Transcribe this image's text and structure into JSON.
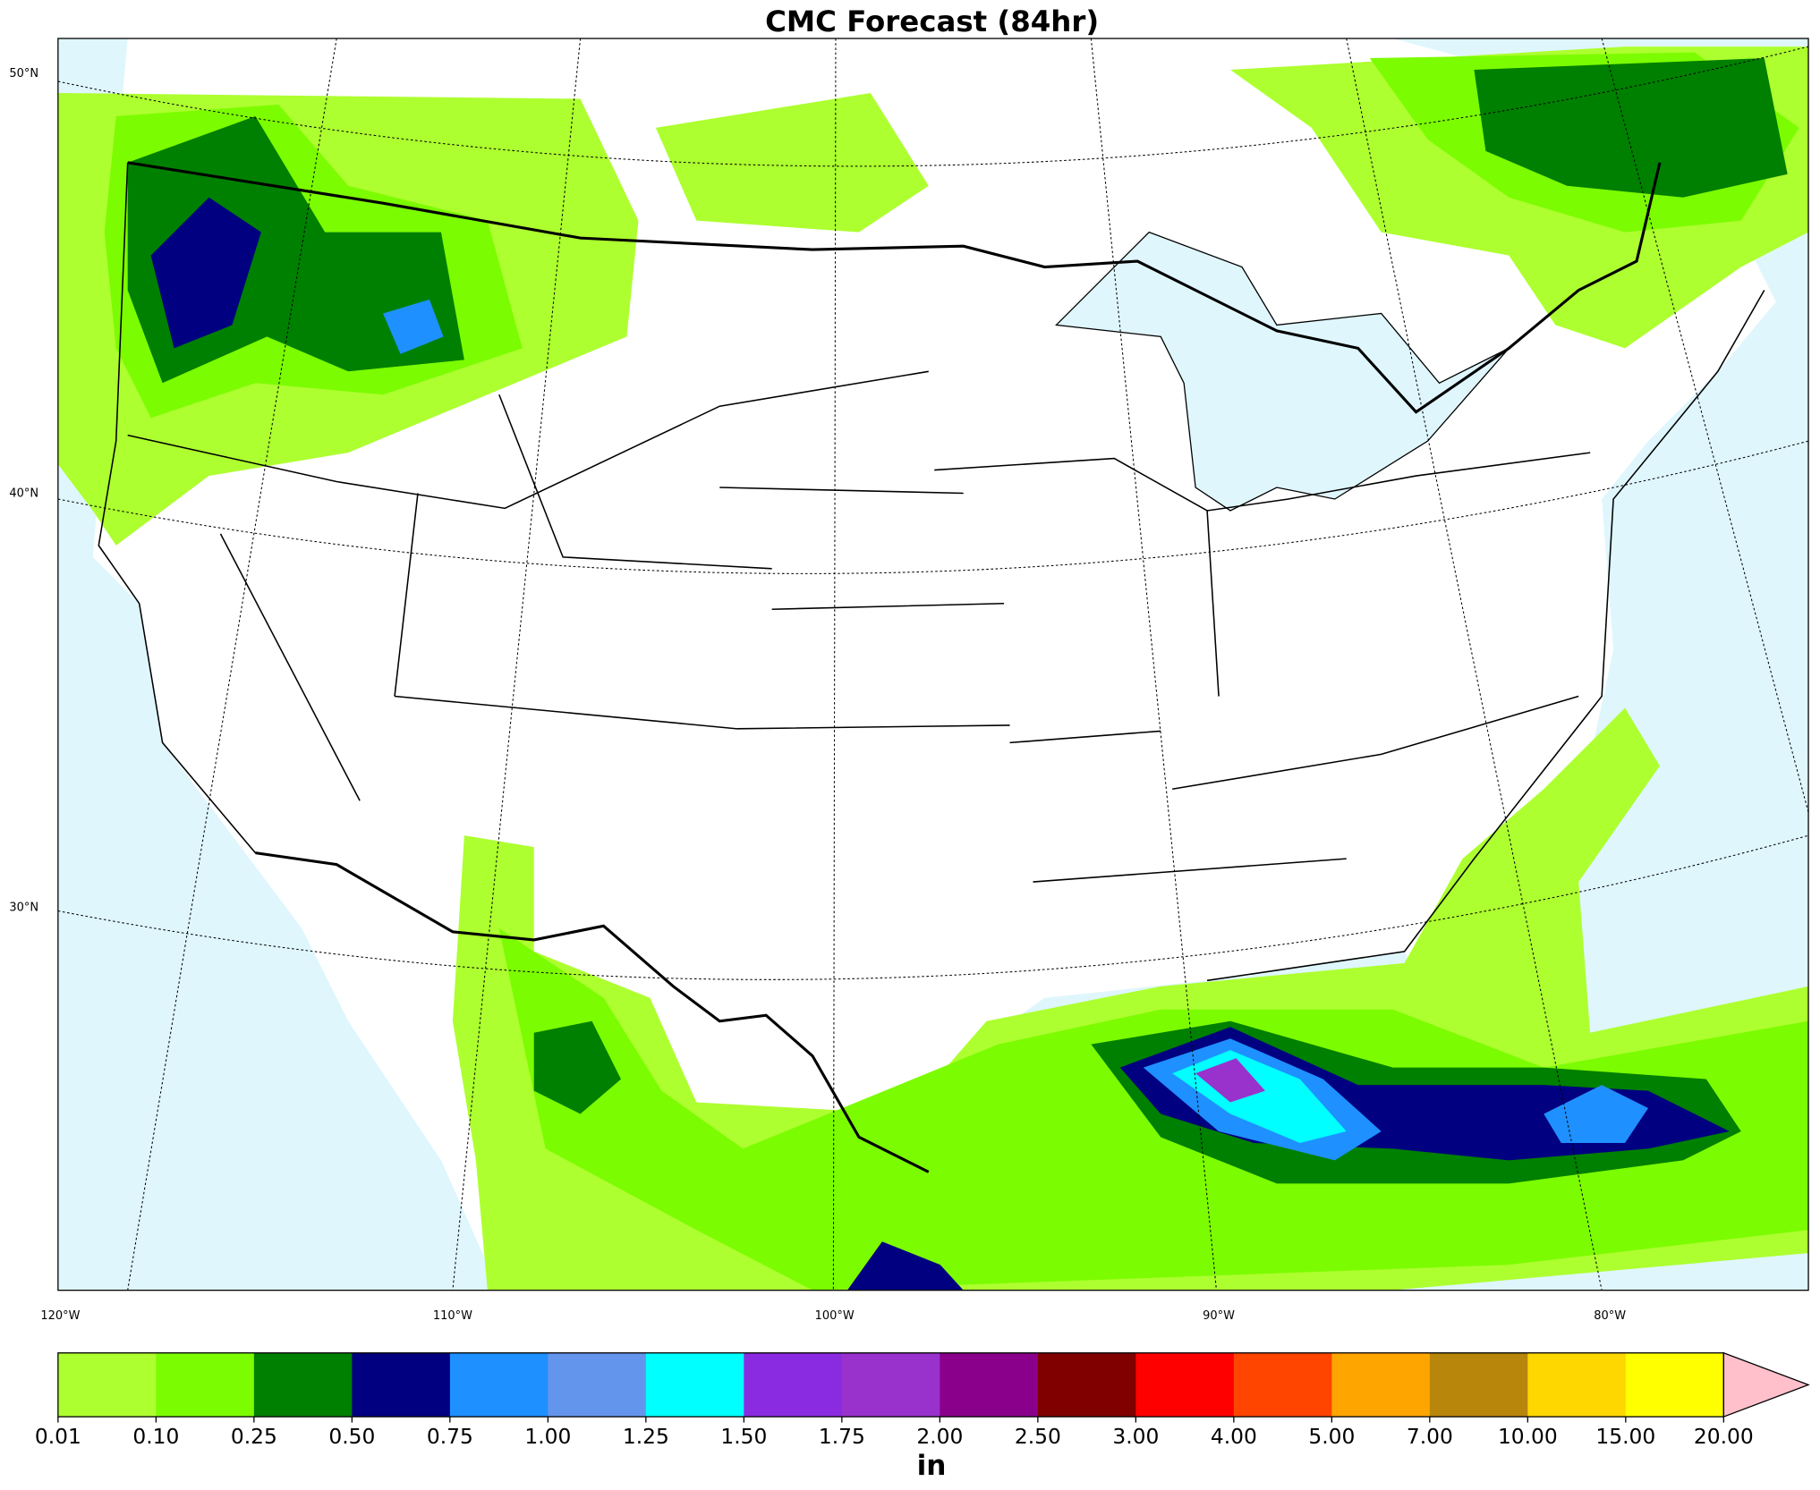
{
  "title": "CMC Forecast (84hr)",
  "map": {
    "lat_labels": [
      "50°N",
      "40°N",
      "30°N"
    ],
    "lon_labels": [
      "120°W",
      "110°W",
      "100°W",
      "90°W",
      "80°W"
    ]
  },
  "colorbar": {
    "levels": [
      {
        "value": 0.01,
        "label": "0.01"
      },
      {
        "value": 0.1,
        "label": "0.10"
      },
      {
        "value": 0.25,
        "label": "0.25"
      },
      {
        "value": 0.5,
        "label": "0.50"
      },
      {
        "value": 0.75,
        "label": "0.75"
      },
      {
        "value": 1,
        "label": "1.00"
      },
      {
        "value": 1.25,
        "label": "1.25"
      },
      {
        "value": 1.5,
        "label": "1.50"
      },
      {
        "value": 1.75,
        "label": "1.75"
      },
      {
        "value": 2,
        "label": "2.00"
      },
      {
        "value": 2.5,
        "label": "2.50"
      },
      {
        "value": 3,
        "label": "3.00"
      },
      {
        "value": 4,
        "label": "4.00"
      },
      {
        "value": 5,
        "label": "5.00"
      },
      {
        "value": 7,
        "label": "7.00"
      },
      {
        "value": 10,
        "label": "10.00"
      },
      {
        "value": 15,
        "label": "15.00"
      },
      {
        "value": 20,
        "label": "20.00"
      }
    ],
    "colors": [
      "#adff2f",
      "#7cfc00",
      "#008000",
      "#000080",
      "#1e90ff",
      "#6495ed",
      "#00ffff",
      "#8a2be2",
      "#9932cc",
      "#8b008b",
      "#800000",
      "#ff0000",
      "#ff4500",
      "#ffa500",
      "#b8860b",
      "#ffd700",
      "#ffff00"
    ],
    "extend_color": "#ffc0cb",
    "unit": "in"
  }
}
